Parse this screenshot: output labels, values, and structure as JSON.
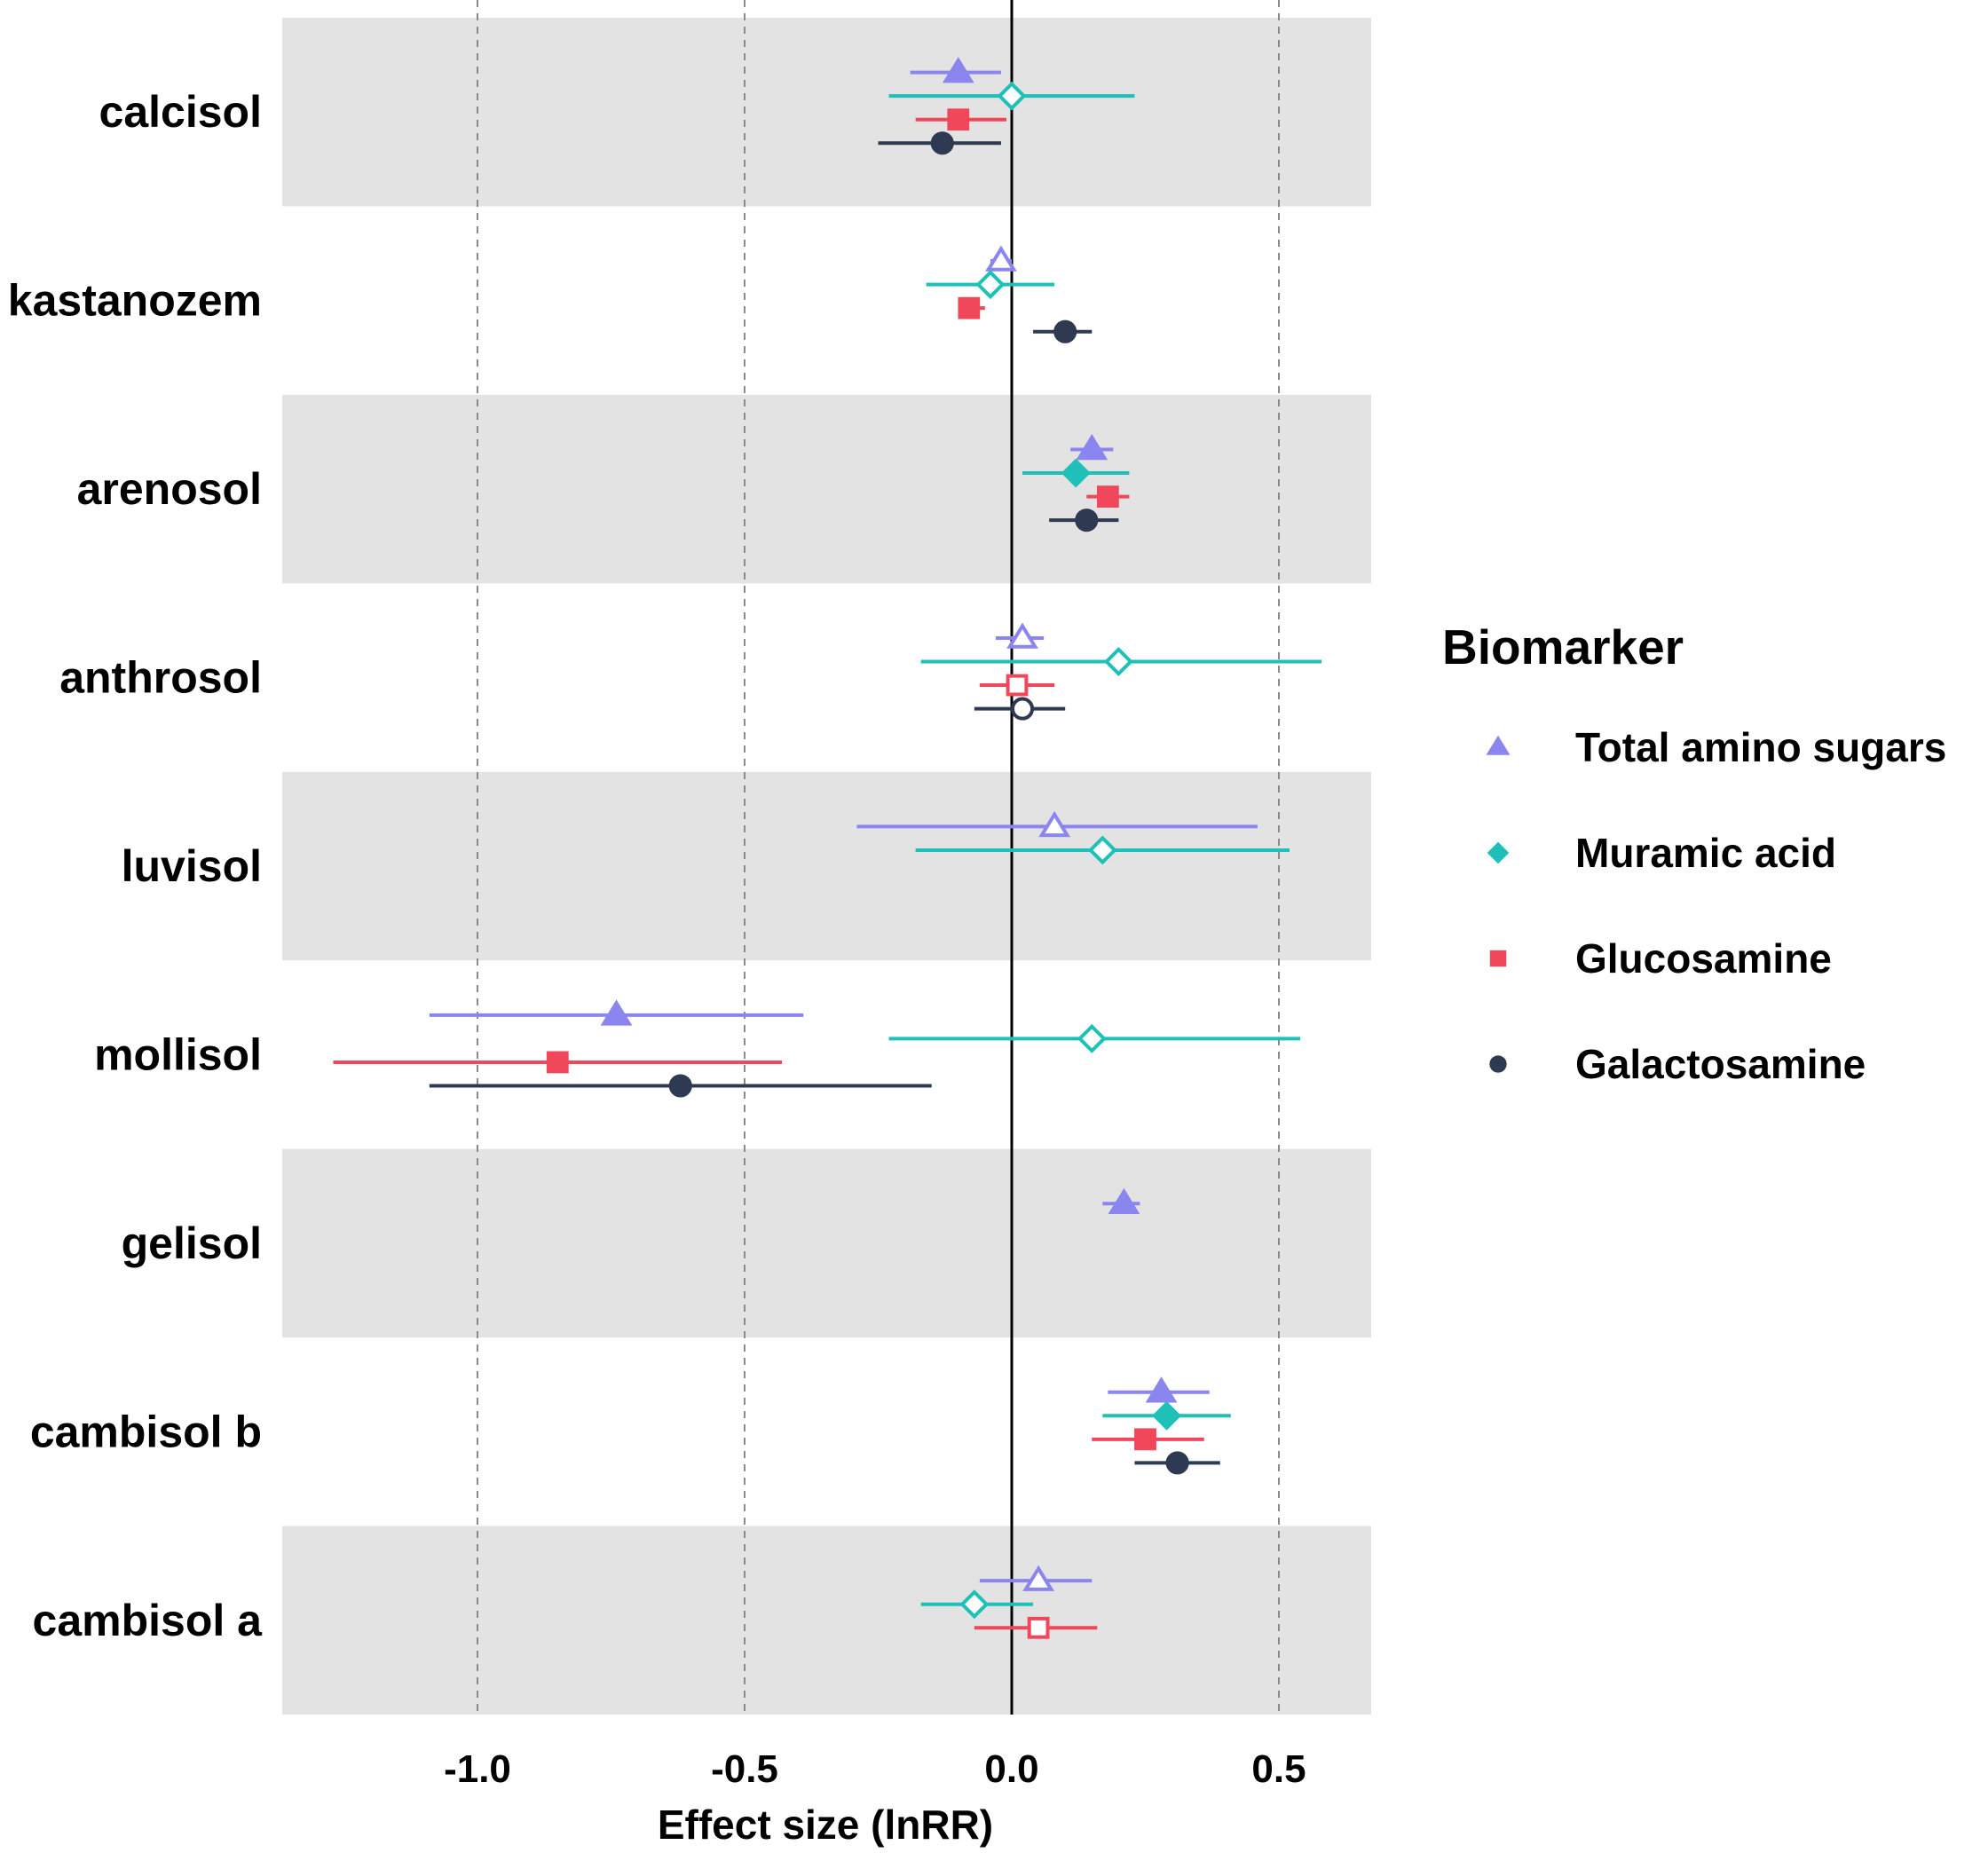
{
  "chart_data": {
    "type": "forest",
    "title": "",
    "xlabel": "Effect size (lnRR)",
    "ylabel": "",
    "xlim": [
      -1.36,
      0.67
    ],
    "x_ticks": [
      -1.0,
      -0.5,
      0.0,
      0.5
    ],
    "x_tick_labels": [
      "-1.0",
      "-0.5",
      "0.0",
      "0.5"
    ],
    "reference_line": 0.0,
    "grid": "vertical dashed at ticks",
    "legend_title": "Biomarker",
    "legend_position": "right",
    "series": [
      {
        "name": "Total amino sugars",
        "shape": "triangle",
        "color": "#8b85f0"
      },
      {
        "name": "Muramic acid",
        "shape": "diamond",
        "color": "#1ec0b8"
      },
      {
        "name": "Glucosamine",
        "shape": "square",
        "color": "#f0485a"
      },
      {
        "name": "Galactosamine",
        "shape": "circle",
        "color": "#2d3a52"
      }
    ],
    "categories": [
      "calcisol",
      "kastanozem",
      "arenosol",
      "anthrosol",
      "luvisol",
      "mollisol",
      "gelisol",
      "cambisol b",
      "cambisol a"
    ],
    "points": [
      {
        "category": "calcisol",
        "series": "Total amino sugars",
        "estimate": -0.1,
        "low": -0.19,
        "high": -0.02,
        "filled": true
      },
      {
        "category": "calcisol",
        "series": "Muramic acid",
        "estimate": 0.0,
        "low": -0.23,
        "high": 0.23,
        "filled": false
      },
      {
        "category": "calcisol",
        "series": "Glucosamine",
        "estimate": -0.1,
        "low": -0.18,
        "high": -0.01,
        "filled": true
      },
      {
        "category": "calcisol",
        "series": "Galactosamine",
        "estimate": -0.13,
        "low": -0.25,
        "high": -0.02,
        "filled": true
      },
      {
        "category": "kastanozem",
        "series": "Total amino sugars",
        "estimate": -0.02,
        "low": -0.04,
        "high": 0.0,
        "filled": false
      },
      {
        "category": "kastanozem",
        "series": "Muramic acid",
        "estimate": -0.04,
        "low": -0.16,
        "high": 0.08,
        "filled": false
      },
      {
        "category": "kastanozem",
        "series": "Glucosamine",
        "estimate": -0.08,
        "low": -0.1,
        "high": -0.05,
        "filled": true
      },
      {
        "category": "kastanozem",
        "series": "Galactosamine",
        "estimate": 0.1,
        "low": 0.04,
        "high": 0.15,
        "filled": true
      },
      {
        "category": "arenosol",
        "series": "Total amino sugars",
        "estimate": 0.15,
        "low": 0.11,
        "high": 0.19,
        "filled": true
      },
      {
        "category": "arenosol",
        "series": "Muramic acid",
        "estimate": 0.12,
        "low": 0.02,
        "high": 0.22,
        "filled": true
      },
      {
        "category": "arenosol",
        "series": "Glucosamine",
        "estimate": 0.18,
        "low": 0.14,
        "high": 0.22,
        "filled": true
      },
      {
        "category": "arenosol",
        "series": "Galactosamine",
        "estimate": 0.14,
        "low": 0.07,
        "high": 0.2,
        "filled": true
      },
      {
        "category": "anthrosol",
        "series": "Total amino sugars",
        "estimate": 0.02,
        "low": -0.03,
        "high": 0.06,
        "filled": false
      },
      {
        "category": "anthrosol",
        "series": "Muramic acid",
        "estimate": 0.2,
        "low": -0.17,
        "high": 0.58,
        "filled": false
      },
      {
        "category": "anthrosol",
        "series": "Glucosamine",
        "estimate": 0.01,
        "low": -0.06,
        "high": 0.08,
        "filled": false
      },
      {
        "category": "anthrosol",
        "series": "Galactosamine",
        "estimate": 0.02,
        "low": -0.07,
        "high": 0.1,
        "filled": false
      },
      {
        "category": "luvisol",
        "series": "Total amino sugars",
        "estimate": 0.08,
        "low": -0.29,
        "high": 0.46,
        "filled": false
      },
      {
        "category": "luvisol",
        "series": "Muramic acid",
        "estimate": 0.17,
        "low": -0.18,
        "high": 0.52,
        "filled": false
      },
      {
        "category": "mollisol",
        "series": "Total amino sugars",
        "estimate": -0.74,
        "low": -1.09,
        "high": -0.39,
        "filled": true
      },
      {
        "category": "mollisol",
        "series": "Muramic acid",
        "estimate": 0.15,
        "low": -0.23,
        "high": 0.54,
        "filled": false
      },
      {
        "category": "mollisol",
        "series": "Glucosamine",
        "estimate": -0.85,
        "low": -1.27,
        "high": -0.43,
        "filled": true
      },
      {
        "category": "mollisol",
        "series": "Galactosamine",
        "estimate": -0.62,
        "low": -1.09,
        "high": -0.15,
        "filled": true
      },
      {
        "category": "gelisol",
        "series": "Total amino sugars",
        "estimate": 0.21,
        "low": 0.17,
        "high": 0.24,
        "filled": true
      },
      {
        "category": "cambisol b",
        "series": "Total amino sugars",
        "estimate": 0.28,
        "low": 0.18,
        "high": 0.37,
        "filled": true
      },
      {
        "category": "cambisol b",
        "series": "Muramic acid",
        "estimate": 0.29,
        "low": 0.17,
        "high": 0.41,
        "filled": true
      },
      {
        "category": "cambisol b",
        "series": "Glucosamine",
        "estimate": 0.25,
        "low": 0.15,
        "high": 0.36,
        "filled": true
      },
      {
        "category": "cambisol b",
        "series": "Galactosamine",
        "estimate": 0.31,
        "low": 0.23,
        "high": 0.39,
        "filled": true
      },
      {
        "category": "cambisol a",
        "series": "Total amino sugars",
        "estimate": 0.05,
        "low": -0.06,
        "high": 0.15,
        "filled": false
      },
      {
        "category": "cambisol a",
        "series": "Muramic acid",
        "estimate": -0.07,
        "low": -0.17,
        "high": 0.04,
        "filled": false
      },
      {
        "category": "cambisol a",
        "series": "Glucosamine",
        "estimate": 0.05,
        "low": -0.07,
        "high": 0.16,
        "filled": false
      }
    ]
  }
}
